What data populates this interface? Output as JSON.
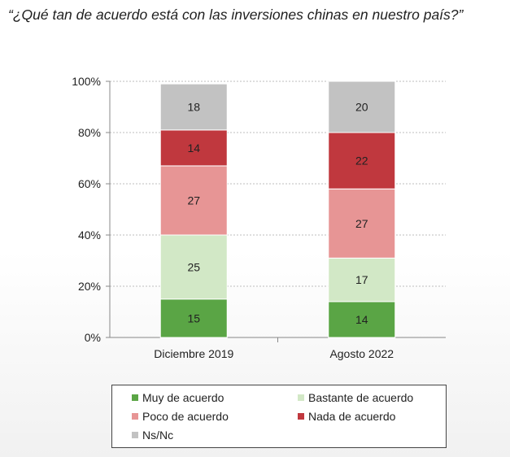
{
  "title": "“¿Qué tan de acuerdo está con las inversiones chinas en nuestro país?”",
  "chart_data": {
    "type": "bar",
    "stacked": true,
    "categories": [
      "Diciembre 2019",
      "Agosto 2022"
    ],
    "ylim": [
      0,
      100
    ],
    "yticks": [
      "0%",
      "20%",
      "40%",
      "60%",
      "80%",
      "100%"
    ],
    "grid": true,
    "legend_position": "bottom",
    "series": [
      {
        "name": "Muy de acuerdo",
        "values": [
          15,
          14
        ],
        "color": "#5aa545"
      },
      {
        "name": "Bastante de acuerdo",
        "values": [
          25,
          17
        ],
        "color": "#d2e8c6"
      },
      {
        "name": "Poco de acuerdo",
        "values": [
          27,
          27
        ],
        "color": "#e79595"
      },
      {
        "name": "Nada de acuerdo",
        "values": [
          14,
          22
        ],
        "color": "#c0383e"
      },
      {
        "name": "Ns/Nc",
        "values": [
          18,
          20
        ],
        "color": "#c2c2c2"
      }
    ]
  }
}
